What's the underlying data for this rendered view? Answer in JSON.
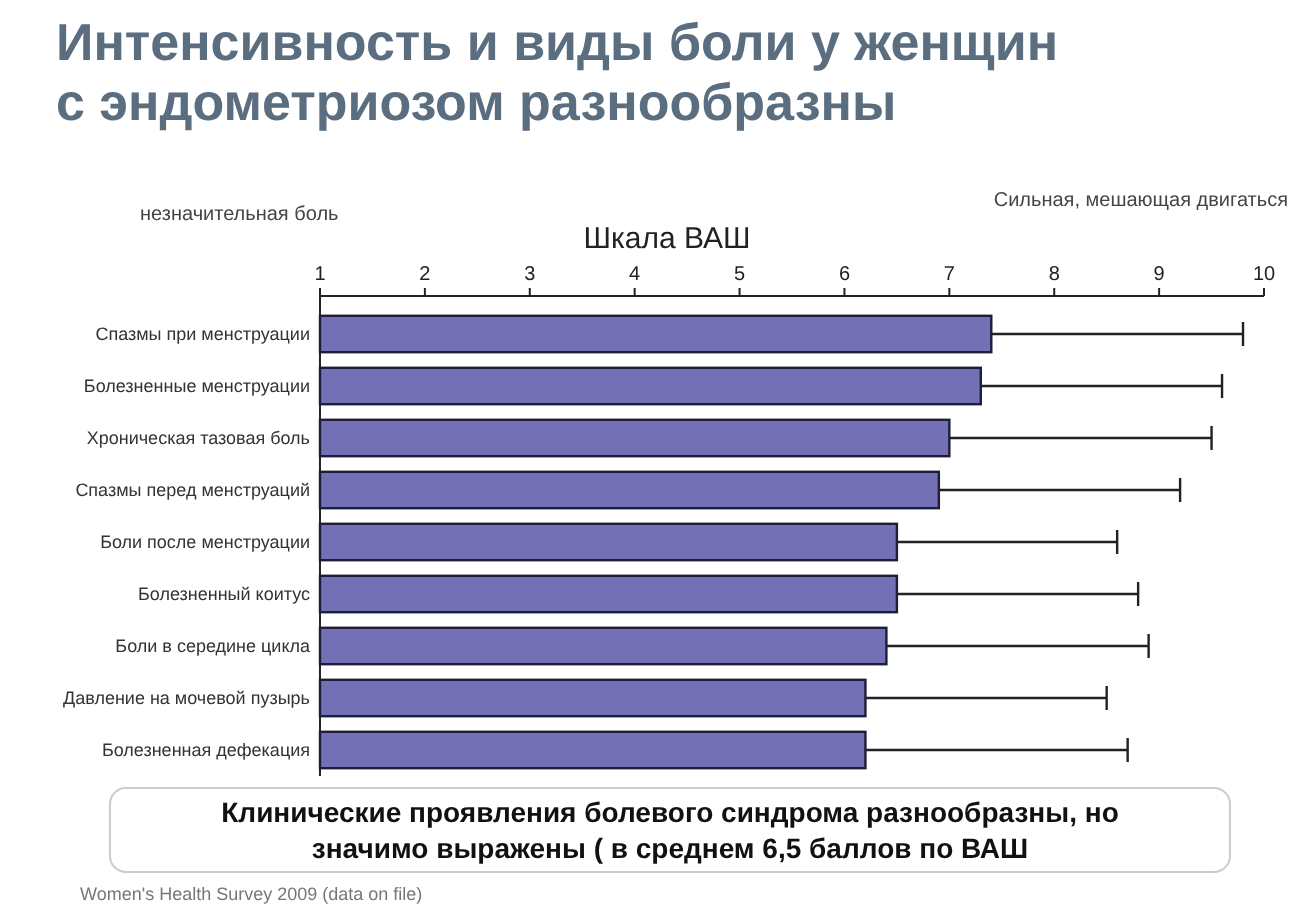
{
  "chart_data": {
    "type": "bar",
    "orientation": "horizontal",
    "title": "Интенсивность  и виды боли у женщин с эндометриозом разнообразны",
    "xlabel": "Шкала ВАШ",
    "categories": [
      "Спазмы при менструации",
      "Болезненные менструации",
      "Хроническая тазовая боль",
      "Спазмы перед менструаций",
      "Боли после менструации",
      "Болезненный коитус",
      "Боли в середине цикла",
      "Давление на мочевой пузырь",
      "Болезненная дефекация"
    ],
    "values": [
      7.4,
      7.3,
      7.0,
      6.9,
      6.5,
      6.5,
      6.4,
      6.2,
      6.2
    ],
    "errors": [
      [
        7.4,
        9.8
      ],
      [
        7.3,
        9.6
      ],
      [
        7.0,
        9.5
      ],
      [
        6.9,
        9.2
      ],
      [
        6.5,
        8.6
      ],
      [
        6.5,
        8.8
      ],
      [
        6.4,
        8.9
      ],
      [
        6.2,
        8.5
      ],
      [
        6.2,
        8.7
      ]
    ],
    "color": "#7470b6",
    "xlim": [
      1,
      10
    ],
    "xticks": [
      1,
      2,
      3,
      4,
      5,
      6,
      7,
      8,
      9,
      10
    ],
    "grid": false,
    "annotations": [
      "незначительная боль",
      "Сильная, мешающая двигаться",
      "Клинические проявления болевого синдрома разнообразны, но значимо выражены ( в среднем 6,5 баллов по ВАШ",
      "Women's Health Survey 2009 (data on file)"
    ]
  }
}
